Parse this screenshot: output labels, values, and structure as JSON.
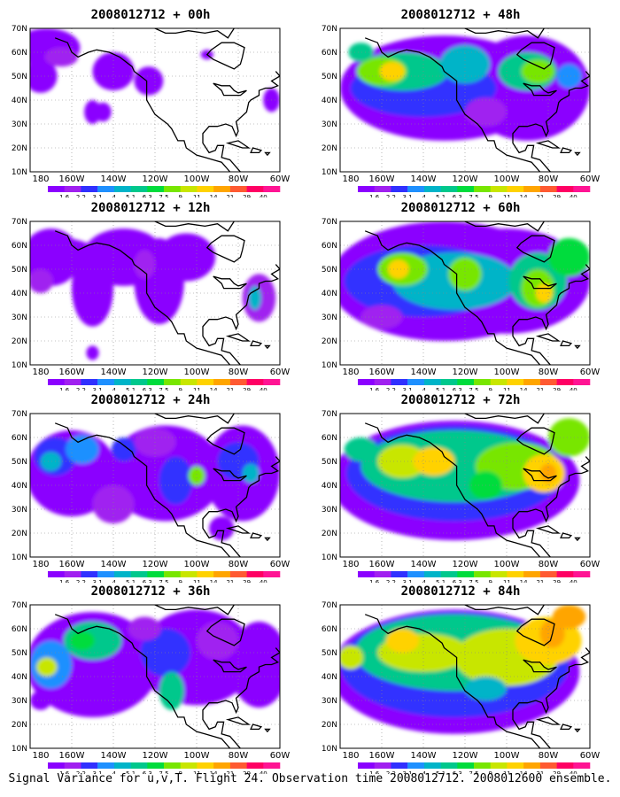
{
  "panels": [
    {
      "title": "2008012712 + 00h",
      "pattern": "p00"
    },
    {
      "title": "2008012712 + 12h",
      "pattern": "p12"
    },
    {
      "title": "2008012712 + 24h",
      "pattern": "p24"
    },
    {
      "title": "2008012712 + 36h",
      "pattern": "p36"
    },
    {
      "title": "2008012712 + 48h",
      "pattern": "p48"
    },
    {
      "title": "2008012712 + 60h",
      "pattern": "p60"
    },
    {
      "title": "2008012712 + 72h",
      "pattern": "p72"
    },
    {
      "title": "2008012712 + 84h",
      "pattern": "p84"
    }
  ],
  "axes": {
    "lat_labels": [
      "70N",
      "60N",
      "50N",
      "40N",
      "30N",
      "20N",
      "10N"
    ],
    "lon_labels": [
      "180",
      "160W",
      "140W",
      "120W",
      "100W",
      "80W",
      "60W"
    ]
  },
  "colorbar": {
    "levels": [
      "1.6",
      "2.2",
      "3.1",
      "4",
      "5.1",
      "6.3",
      "7.5",
      "9",
      "11",
      "14",
      "21",
      "29",
      "40"
    ],
    "colors": [
      "#8B00FF",
      "#A020F0",
      "#3030FF",
      "#1E90FF",
      "#00B4C8",
      "#00C88C",
      "#00DC3C",
      "#78E600",
      "#C8E600",
      "#FFD200",
      "#FFA500",
      "#FF5A32",
      "#FF0064",
      "#FF1493"
    ]
  },
  "caption": "Signal Variance for u,v,T. Flight 24. Observation time 2008012712. 2008012600 ensemble."
}
